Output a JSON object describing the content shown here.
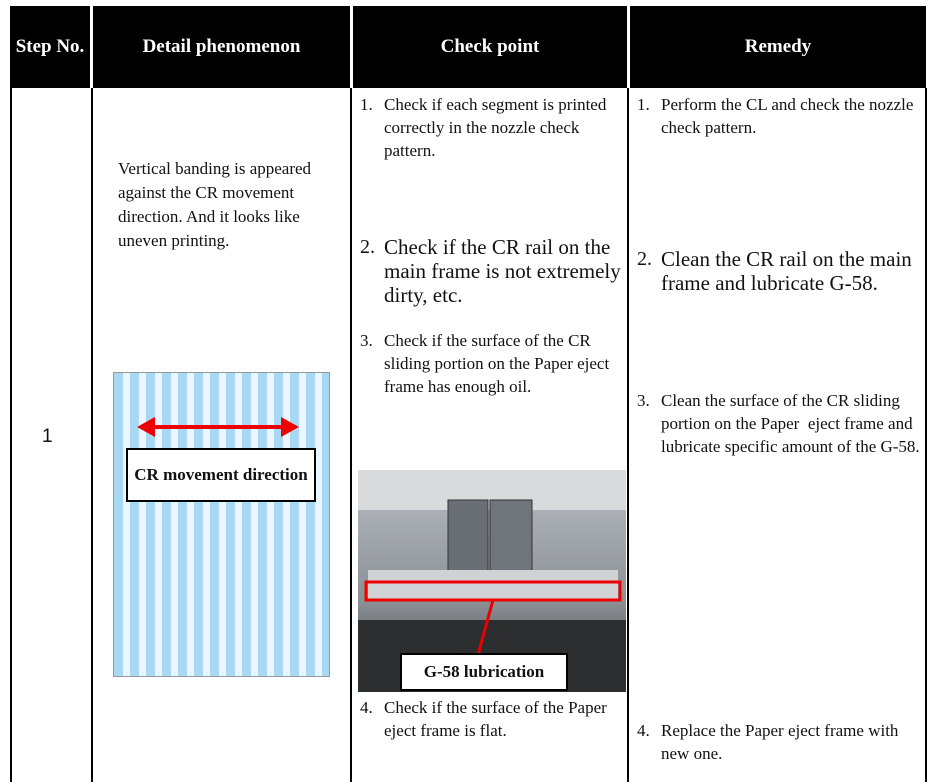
{
  "header": {
    "cells": [
      "Step No.",
      "Detail phenomenon",
      "Check point",
      "Remedy"
    ]
  },
  "rows": [
    {
      "step": "1",
      "detail": "Vertical banding is appeared against the CR movement direction. And it looks like uneven printing.",
      "figure_label": "CR movement direction",
      "check_points": [
        {
          "number": "1.",
          "text": "Check if each segment is printed correctly in the nozzle check pattern."
        },
        {
          "number": "2.",
          "text": "Check if the CR rail on the main frame is not extremely dirty, etc."
        },
        {
          "number": "3.",
          "text": "Check if the surface of the CR sliding portion on the Paper eject frame has enough oil."
        },
        {
          "number": "4.",
          "text": "Check if the surface of the Paper eject frame is flat."
        }
      ],
      "photo_label": "G-58 lubrication",
      "remedies": [
        {
          "number": "1.",
          "text": "Perform the CL and check the nozzle check pattern."
        },
        {
          "number": "2.",
          "text": "Clean the CR rail on the main frame and lubricate G-58."
        },
        {
          "number": "3.",
          "text": "Clean the surface of the CR sliding portion on the Paper  eject frame and lubricate specific amount of the G-58."
        },
        {
          "number": "4.",
          "text": "Replace the Paper eject frame with new one."
        }
      ]
    }
  ]
}
